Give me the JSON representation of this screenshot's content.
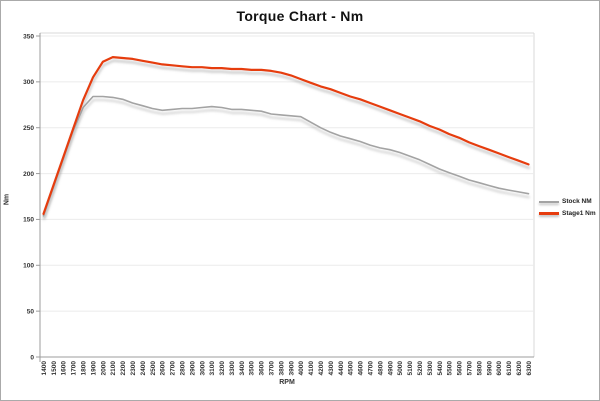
{
  "title": "Torque Chart - Nm",
  "colors": {
    "stock_line": "#a3a3a3",
    "stage1_line": "#e63c0e",
    "axis": "#9c9c9c",
    "plot_border": "#d9d9d9",
    "gridline": "#ebebeb",
    "tick_text": "#333333",
    "shadow": "#999999"
  },
  "chart_data": {
    "type": "line",
    "title": "Torque Chart - Nm",
    "xlabel": "RPM",
    "ylabel": "Nm",
    "ylim": [
      0,
      350
    ],
    "ytick_step": 50,
    "grid": "horizontal",
    "legend_position": "right",
    "categories": [
      1400,
      1500,
      1600,
      1700,
      1800,
      1900,
      2000,
      2100,
      2200,
      2300,
      2400,
      2500,
      2600,
      2700,
      2800,
      2900,
      3000,
      3100,
      3200,
      3300,
      3400,
      3500,
      3600,
      3700,
      3800,
      3900,
      4000,
      4100,
      4200,
      4300,
      4400,
      4500,
      4600,
      4700,
      4800,
      4900,
      5000,
      5100,
      5200,
      5300,
      5400,
      5500,
      5600,
      5700,
      5800,
      5900,
      6000,
      6100,
      6200,
      6300
    ],
    "series": [
      {
        "name": "Stock NM",
        "color": "#a3a3a3",
        "width": 1.6,
        "values": [
          154,
          185,
          216,
          247,
          272,
          284,
          284,
          283,
          281,
          277,
          274,
          271,
          269,
          270,
          271,
          271,
          272,
          273,
          272,
          270,
          270,
          269,
          268,
          265,
          264,
          263,
          262,
          256,
          250,
          245,
          241,
          238,
          235,
          231,
          228,
          226,
          223,
          219,
          215,
          210,
          205,
          201,
          197,
          193,
          190,
          187,
          184,
          182,
          180,
          178
        ]
      },
      {
        "name": "Stage1 Nm",
        "color": "#e63c0e",
        "width": 2.2,
        "values": [
          156,
          187,
          218,
          249,
          280,
          305,
          322,
          327,
          326,
          325,
          323,
          321,
          319,
          318,
          317,
          316,
          316,
          315,
          315,
          314,
          314,
          313,
          313,
          312,
          310,
          307,
          303,
          299,
          295,
          292,
          288,
          284,
          281,
          277,
          273,
          269,
          265,
          261,
          257,
          252,
          248,
          243,
          239,
          234,
          230,
          226,
          222,
          218,
          214,
          210
        ]
      }
    ]
  }
}
